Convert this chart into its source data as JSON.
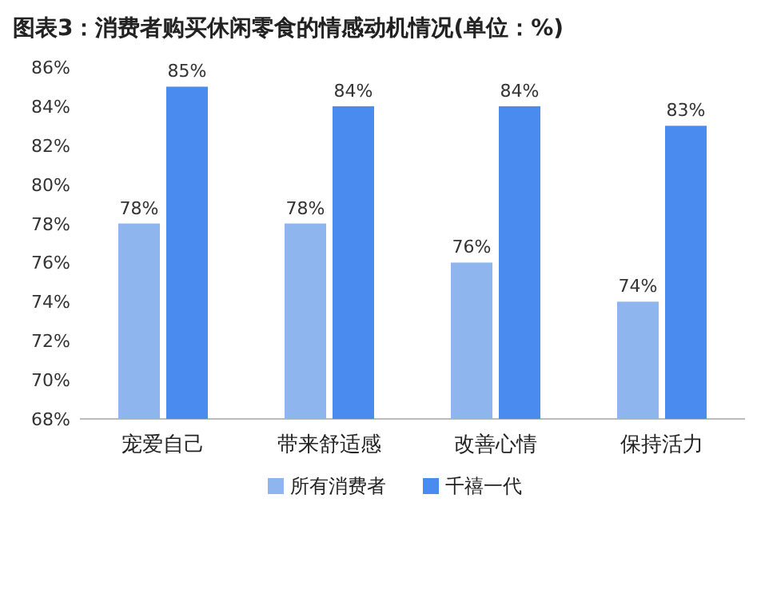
{
  "chart_data": {
    "type": "bar",
    "title": "图表3：消费者购买休闲零食的情感动机情况(单位：%)",
    "categories": [
      "宠爱自己",
      "带来舒适感",
      "改善心情",
      "保持活力"
    ],
    "series": [
      {
        "name": "所有消费者",
        "color": "#8fb5ee",
        "values": [
          78,
          78,
          76,
          74
        ],
        "value_labels": [
          "78%",
          "78%",
          "76%",
          "74%"
        ]
      },
      {
        "name": "千禧一代",
        "color": "#4a8bef",
        "values": [
          85,
          84,
          84,
          83
        ],
        "value_labels": [
          "85%",
          "84%",
          "84%",
          "83%"
        ]
      }
    ],
    "ylim": [
      68,
      86
    ],
    "yticks": [
      {
        "value": 68,
        "label": "68%"
      },
      {
        "value": 70,
        "label": "70%"
      },
      {
        "value": 72,
        "label": "72%"
      },
      {
        "value": 74,
        "label": "74%"
      },
      {
        "value": 76,
        "label": "76%"
      },
      {
        "value": 78,
        "label": "78%"
      },
      {
        "value": 80,
        "label": "80%"
      },
      {
        "value": 82,
        "label": "82%"
      },
      {
        "value": 84,
        "label": "84%"
      },
      {
        "value": 86,
        "label": "86%"
      }
    ],
    "legend": "bottom"
  }
}
